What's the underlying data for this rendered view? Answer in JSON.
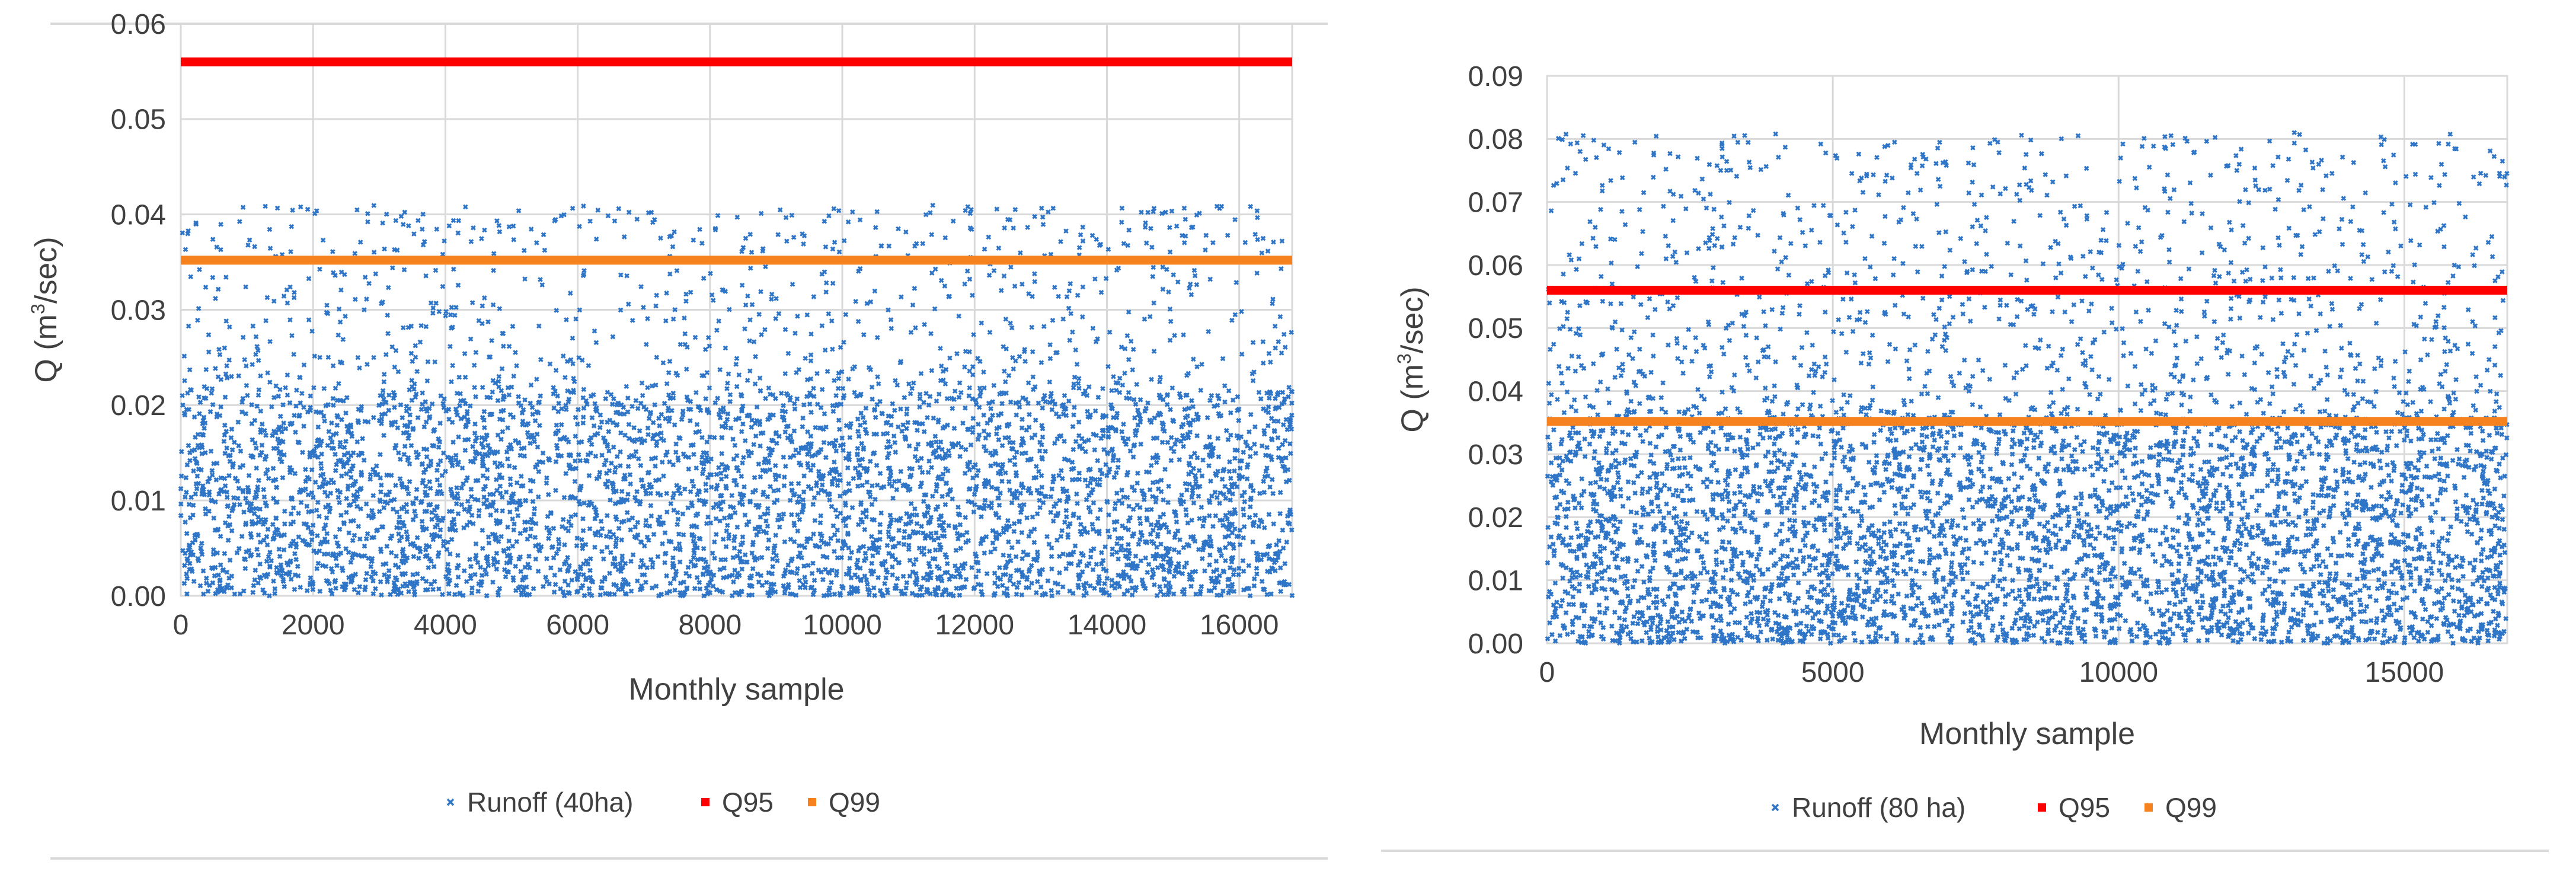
{
  "chart_data": [
    {
      "type": "scatter",
      "title": "",
      "xlabel": "Monthly sample",
      "ylabel": "Q (m³/sec)",
      "ylabel_parts": {
        "prefix": "Q (m",
        "sup": "3",
        "suffix": "/sec)"
      },
      "xlim": [
        0,
        16800
      ],
      "ylim": [
        0,
        0.06
      ],
      "x_ticks": [
        "0",
        "2000",
        "4000",
        "6000",
        "8000",
        "10000",
        "12000",
        "14000",
        "16000"
      ],
      "y_ticks": [
        "0.00",
        "0.01",
        "0.02",
        "0.03",
        "0.04",
        "0.05",
        "0.06"
      ],
      "grid": true,
      "legend_position": "bottom",
      "series": [
        {
          "name": "Runoff (40ha)",
          "kind": "scatter",
          "color": "#2e75c8",
          "n_points": 16800,
          "bulk_max": 0.021,
          "upper_band": [
            0.036,
            0.04
          ],
          "max": 0.041
        },
        {
          "name": "Q95",
          "kind": "hline",
          "value": 0.056,
          "color": "#ff0000"
        },
        {
          "name": "Q99",
          "kind": "hline",
          "value": 0.0352,
          "color": "#f5821f"
        }
      ]
    },
    {
      "type": "scatter",
      "title": "",
      "xlabel": "Monthly sample",
      "ylabel": "Q (m³/sec)",
      "ylabel_parts": {
        "prefix": "Q (m",
        "sup": "3",
        "suffix": "/sec)"
      },
      "xlim": [
        0,
        16800
      ],
      "ylim": [
        0,
        0.09
      ],
      "x_ticks": [
        "0",
        "5000",
        "10000",
        "15000"
      ],
      "y_ticks": [
        "0.00",
        "0.01",
        "0.02",
        "0.03",
        "0.04",
        "0.05",
        "0.06",
        "0.07",
        "0.08",
        "0.09"
      ],
      "grid": true,
      "legend_position": "bottom",
      "series": [
        {
          "name": "Runoff (80 ha)",
          "kind": "scatter",
          "color": "#2e75c8",
          "n_points": 16800,
          "bulk_max": 0.035,
          "upper_band": [
            0.07,
            0.08
          ],
          "max": 0.081
        },
        {
          "name": "Q95",
          "kind": "hline",
          "value": 0.056,
          "color": "#ff0000"
        },
        {
          "name": "Q99",
          "kind": "hline",
          "value": 0.0352,
          "color": "#f5821f"
        }
      ]
    }
  ]
}
